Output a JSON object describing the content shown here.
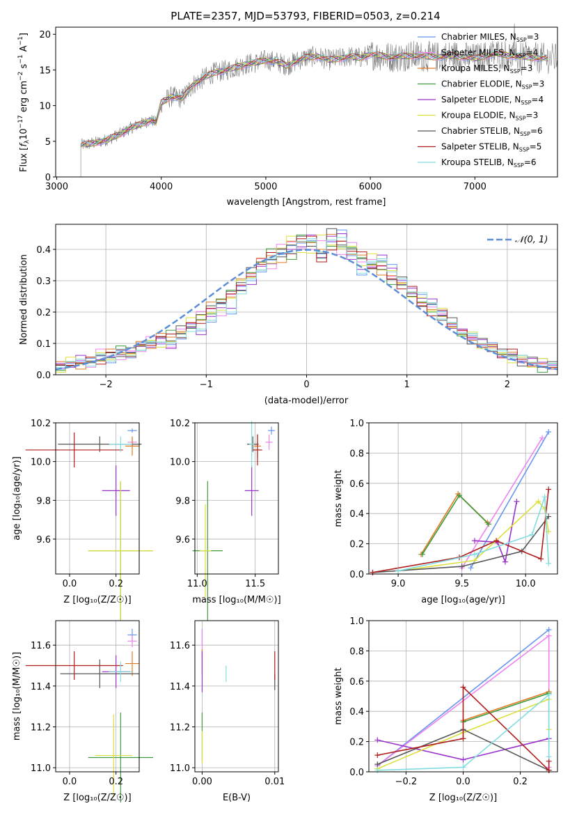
{
  "figure": {
    "title": "PLATE=2357, MJD=53793, FIBERID=0503, z=0.214"
  },
  "colors": {
    "chabrier_miles": "#6495ed",
    "salpeter_miles": "#ee82ee",
    "kroupa_miles": "#e07b24",
    "chabrier_elodie": "#3d9b3d",
    "salpeter_elodie": "#9932cc",
    "kroupa_elodie": "#dce03c",
    "chabrier_stelib": "#555555",
    "salpeter_stelib": "#b01c1c",
    "kroupa_stelib": "#80dce0",
    "normal_curve": "#5b8ed6",
    "spectrum_data": "#7a7a7a"
  },
  "chart_data": [
    {
      "id": "spectrum",
      "type": "line",
      "xlabel": "wavelength [Angstrom, rest frame]",
      "ylabel": "Flux [f_λ 10⁻¹⁷ erg cm⁻² s⁻¹ A⁻¹]",
      "xlim": [
        2990,
        7790
      ],
      "ylim": [
        0,
        21
      ],
      "xticks": [
        "3000",
        "4000",
        "5000",
        "6000",
        "7000"
      ],
      "yticks": [
        "0",
        "5",
        "10",
        "15",
        "20"
      ],
      "legend_position": "right",
      "legend": [
        "Chabrier MILES, N_SSP=3",
        "Salpeter MILES, N_SSP=4",
        "Kroupa MILES, N_SSP=3",
        "Chabrier ELODIE, N_SSP=3",
        "Salpeter ELODIE, N_SSP=4",
        "Kroupa ELODIE, N_SSP=3",
        "Chabrier STELIB, N_SSP=6",
        "Salpeter STELIB, N_SSP=5",
        "Kroupa STELIB, N_SSP=6"
      ],
      "model_continuum": {
        "x": [
          3230,
          3300,
          3400,
          3500,
          3600,
          3700,
          3800,
          3900,
          3950,
          4000,
          4100,
          4200,
          4300,
          4400,
          4500,
          4600,
          4700,
          4800,
          4900,
          5000,
          5100,
          5200,
          5300,
          5400,
          5500,
          5600,
          5700,
          5800,
          5900,
          6000,
          6200,
          6400,
          6600,
          6800,
          7000,
          7200,
          7400,
          7700
        ],
        "y": [
          4.5,
          4.6,
          4.9,
          5.3,
          6.0,
          6.8,
          7.4,
          8.0,
          7.6,
          10.4,
          11.3,
          11.0,
          12.9,
          13.8,
          14.6,
          14.9,
          15.3,
          15.8,
          16.0,
          16.4,
          16.2,
          15.6,
          16.3,
          16.8,
          16.9,
          16.4,
          16.6,
          16.9,
          16.7,
          17.2,
          16.8,
          17.0,
          16.8,
          17.0,
          16.6,
          17.3,
          16.9,
          16.6
        ]
      }
    },
    {
      "id": "residuals",
      "type": "bar",
      "xlabel": "(data-model)/error",
      "ylabel": "Normed distribution",
      "xlim": [
        -2.5,
        2.5
      ],
      "ylim": [
        0,
        0.48
      ],
      "xticks": [
        "−2",
        "−1",
        "0",
        "1",
        "2"
      ],
      "yticks": [
        "0.0",
        "0.1",
        "0.2",
        "0.3",
        "0.4"
      ],
      "legend": [
        "𝒩(0, 1)"
      ],
      "legend_position": "top-right",
      "bin_edges_start": -2.5,
      "bin_width": 0.1,
      "series": [
        {
          "values": [
            0.03,
            0.03,
            0.05,
            0.04,
            0.06,
            0.05,
            0.07,
            0.06,
            0.09,
            0.1,
            0.11,
            0.09,
            0.12,
            0.15,
            0.14,
            0.18,
            0.22,
            0.2,
            0.27,
            0.3,
            0.34,
            0.36,
            0.39,
            0.4,
            0.42,
            0.44,
            0.38,
            0.43,
            0.45,
            0.38,
            0.33,
            0.35,
            0.37,
            0.34,
            0.3,
            0.27,
            0.25,
            0.23,
            0.19,
            0.16,
            0.14,
            0.12,
            0.1,
            0.09,
            0.07,
            0.06,
            0.05,
            0.04,
            0.04,
            0.03
          ]
        },
        {
          "values": [
            0.02,
            0.05,
            0.04,
            0.03,
            0.07,
            0.06,
            0.06,
            0.07,
            0.08,
            0.11,
            0.1,
            0.1,
            0.14,
            0.17,
            0.19,
            0.21,
            0.2,
            0.25,
            0.29,
            0.31,
            0.37,
            0.35,
            0.41,
            0.43,
            0.39,
            0.4,
            0.44,
            0.42,
            0.39,
            0.41,
            0.36,
            0.38,
            0.34,
            0.32,
            0.29,
            0.26,
            0.24,
            0.21,
            0.2,
            0.15,
            0.14,
            0.13,
            0.09,
            0.08,
            0.07,
            0.05,
            0.05,
            0.03,
            0.04,
            0.02
          ]
        },
        {
          "values": [
            0.03,
            0.04,
            0.03,
            0.05,
            0.05,
            0.07,
            0.07,
            0.08,
            0.1,
            0.09,
            0.12,
            0.12,
            0.15,
            0.16,
            0.18,
            0.22,
            0.24,
            0.26,
            0.3,
            0.33,
            0.36,
            0.38,
            0.37,
            0.42,
            0.43,
            0.41,
            0.4,
            0.46,
            0.42,
            0.39,
            0.37,
            0.35,
            0.33,
            0.31,
            0.3,
            0.25,
            0.23,
            0.22,
            0.18,
            0.17,
            0.13,
            0.11,
            0.11,
            0.08,
            0.07,
            0.06,
            0.04,
            0.05,
            0.03,
            0.03
          ]
        },
        {
          "values": [
            0.02,
            0.03,
            0.05,
            0.05,
            0.04,
            0.06,
            0.08,
            0.07,
            0.09,
            0.1,
            0.11,
            0.13,
            0.13,
            0.16,
            0.17,
            0.2,
            0.23,
            0.27,
            0.28,
            0.32,
            0.34,
            0.39,
            0.4,
            0.38,
            0.44,
            0.43,
            0.36,
            0.41,
            0.42,
            0.4,
            0.38,
            0.34,
            0.36,
            0.3,
            0.28,
            0.27,
            0.22,
            0.2,
            0.2,
            0.16,
            0.13,
            0.12,
            0.1,
            0.09,
            0.06,
            0.07,
            0.05,
            0.04,
            0.02,
            0.03
          ]
        }
      ],
      "normal_curve": {
        "mean": 0,
        "sigma": 1
      }
    },
    {
      "id": "age_vs_Z",
      "type": "scatter",
      "xlabel": "Z [log₁₀(Z/Z☉)]",
      "ylabel": "age  [log₁₀(age/yr)]",
      "xlim": [
        -0.06,
        0.3
      ],
      "ylim": [
        9.42,
        10.2
      ],
      "xticks": [
        "0.0",
        "0.2"
      ],
      "yticks": [
        "9.6",
        "9.8",
        "10.0",
        "10.2"
      ]
    },
    {
      "id": "age_vs_mass",
      "type": "scatter",
      "xlabel": "mass [log₁₀(M/M☉)]",
      "ylabel": "",
      "xlim": [
        10.98,
        11.7
      ],
      "ylim": [
        9.42,
        10.2
      ],
      "xticks": [
        "11.0",
        "11.5"
      ],
      "yticks": [
        "9.6",
        "9.8",
        "10.0",
        "10.2"
      ]
    },
    {
      "id": "weight_vs_age",
      "type": "line",
      "xlabel": "age  [log₁₀(age/yr)]",
      "ylabel": "mass weight",
      "xlim": [
        8.77,
        10.25
      ],
      "ylim": [
        0,
        1.0
      ],
      "xticks": [
        "9.0",
        "9.5",
        "10.0"
      ],
      "yticks": [
        "0.0",
        "0.2",
        "0.4",
        "0.6",
        "0.8",
        "1.0"
      ],
      "series": [
        {
          "x": [
            9.57,
            10.18
          ],
          "y": [
            0.04,
            0.94
          ]
        },
        {
          "x": [
            9.5,
            10.13
          ],
          "y": [
            0.04,
            0.9
          ]
        },
        {
          "x": [
            9.18,
            9.47,
            9.7
          ],
          "y": [
            0.13,
            0.53,
            0.34
          ]
        },
        {
          "x": [
            9.19,
            9.48,
            9.71
          ],
          "y": [
            0.13,
            0.52,
            0.33
          ]
        },
        {
          "x": [
            9.6,
            9.78,
            9.84,
            9.93
          ],
          "y": [
            0.22,
            0.21,
            0.08,
            0.48
          ]
        },
        {
          "x": [
            9.0,
            9.6,
            10.1,
            10.15,
            10.18
          ],
          "y": [
            0.02,
            0.09,
            0.48,
            0.43,
            0.28
          ]
        },
        {
          "x": [
            8.8,
            9.5,
            9.97,
            10.18
          ],
          "y": [
            0.01,
            0.05,
            0.15,
            0.38
          ]
        },
        {
          "x": [
            8.8,
            9.48,
            9.77,
            10.12,
            10.18
          ],
          "y": [
            0.01,
            0.11,
            0.22,
            0.1,
            0.56
          ]
        },
        {
          "x": [
            9.0,
            9.6,
            10.05,
            10.15,
            10.18
          ],
          "y": [
            0.02,
            0.13,
            0.26,
            0.51,
            0.07
          ]
        }
      ]
    },
    {
      "id": "mass_vs_Z",
      "type": "scatter",
      "xlabel": "Z [log₁₀(Z/Z☉)]",
      "ylabel": "mass [log₁₀(M/M☉)]",
      "xlim": [
        -0.06,
        0.3
      ],
      "ylim": [
        10.98,
        11.72
      ],
      "xticks": [
        "0.0",
        "0.2"
      ],
      "yticks": [
        "11.0",
        "11.2",
        "11.4",
        "11.6"
      ]
    },
    {
      "id": "mass_vs_EBV",
      "type": "scatter",
      "xlabel": "E(B-V)",
      "ylabel": "",
      "xlim": [
        -0.001,
        0.0105
      ],
      "ylim": [
        10.98,
        11.72
      ],
      "xticks": [
        "0.00",
        "0.01"
      ],
      "yticks": [
        "11.0",
        "11.2",
        "11.4",
        "11.6"
      ]
    },
    {
      "id": "weight_vs_Z",
      "type": "line",
      "xlabel": "Z [log₁₀(Z/Z☉)]",
      "ylabel": "mass weight",
      "xlim": [
        -0.33,
        0.33
      ],
      "ylim": [
        0,
        1.0
      ],
      "xticks": [
        "−0.2",
        "0.0",
        "0.2"
      ],
      "yticks": [
        "0.0",
        "0.2",
        "0.4",
        "0.6",
        "0.8",
        "1.0"
      ],
      "series": [
        {
          "x": [
            -0.3,
            0.3
          ],
          "y": [
            0.04,
            0.94
          ]
        },
        {
          "x": [
            -0.3,
            0.3,
            0.3
          ],
          "y": [
            0.04,
            0.9,
            0.03
          ]
        },
        {
          "x": [
            0.0,
            0.3
          ],
          "y": [
            0.34,
            0.53
          ]
        },
        {
          "x": [
            0.0,
            0.3
          ],
          "y": [
            0.33,
            0.52
          ]
        },
        {
          "x": [
            -0.3,
            0.0,
            0.3
          ],
          "y": [
            0.21,
            0.08,
            0.22
          ]
        },
        {
          "x": [
            -0.3,
            0.0,
            0.3,
            0.3
          ],
          "y": [
            0.02,
            0.26,
            0.48,
            0.28
          ]
        },
        {
          "x": [
            -0.3,
            0.0,
            0.3
          ],
          "y": [
            0.05,
            0.28,
            0.01
          ]
        },
        {
          "x": [
            -0.3,
            0.0,
            0.0,
            0.3,
            0.3
          ],
          "y": [
            0.11,
            0.22,
            0.56,
            0.01,
            0.07
          ]
        },
        {
          "x": [
            -0.3,
            0.0,
            0.3,
            0.3
          ],
          "y": [
            0.01,
            0.03,
            0.51,
            0.1
          ]
        }
      ]
    }
  ]
}
